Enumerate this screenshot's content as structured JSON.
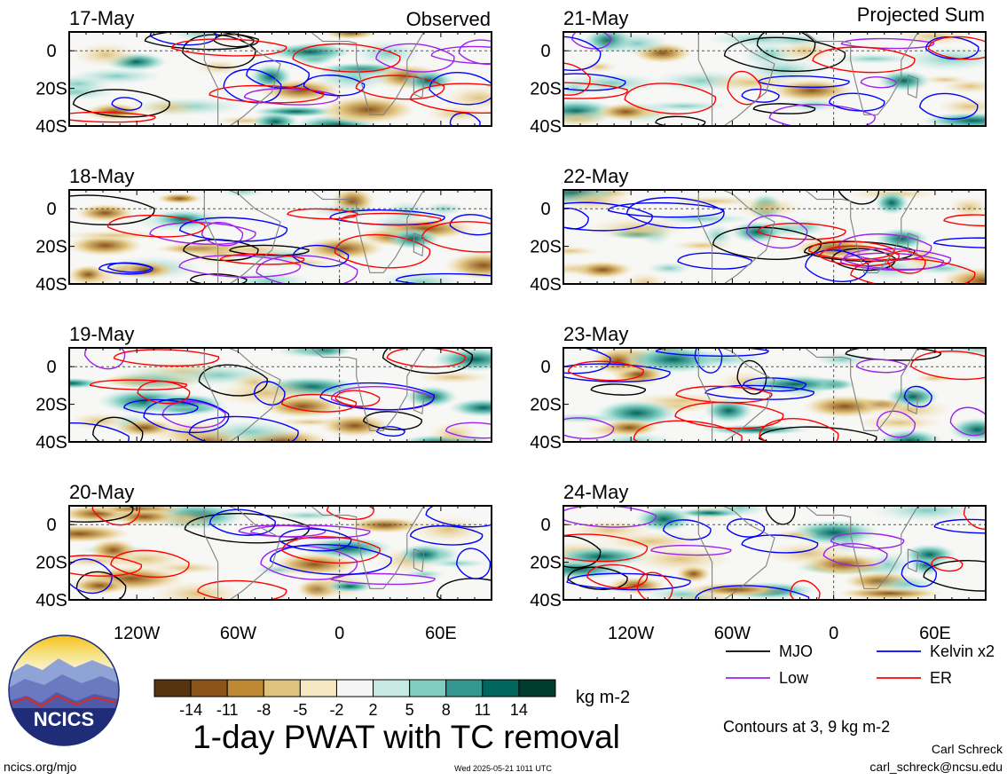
{
  "chart_data": {
    "type": "heatmap",
    "title": "1-day PWAT with TC removal",
    "column_headers": {
      "left": "Observed",
      "right": "Projected Sum"
    },
    "panels_left": [
      "17-May",
      "18-May",
      "19-May",
      "20-May"
    ],
    "panels_right": [
      "21-May",
      "22-May",
      "23-May",
      "24-May"
    ],
    "lat_ticks": [
      "0",
      "20S",
      "40S"
    ],
    "lat_range": [
      -40,
      10
    ],
    "lon_ticks": [
      "120W",
      "60W",
      "0",
      "60E"
    ],
    "lon_range": [
      -160,
      90
    ],
    "colorbar": {
      "units": "kg m-2",
      "tick_labels": [
        "-14",
        "-11",
        "-8",
        "-5",
        "-2",
        "2",
        "5",
        "8",
        "11",
        "14"
      ],
      "colors": [
        "#54330e",
        "#8b5418",
        "#bf8833",
        "#dfc27d",
        "#f6e8c3",
        "#f5f5f5",
        "#c7eae5",
        "#80cdc1",
        "#35978f",
        "#01665e",
        "#003c30"
      ]
    },
    "legend": [
      {
        "label": "MJO",
        "color": "#000000"
      },
      {
        "label": "Kelvin x2",
        "color": "#0000ff"
      },
      {
        "label": "Low",
        "color": "#a020f0"
      },
      {
        "label": "ER",
        "color": "#ff0000"
      }
    ],
    "contour_note": "Contours at 3, 9 kg m-2"
  },
  "branding": {
    "logo_text": "NCICS",
    "url": "ncics.org/mjo",
    "timestamp": "Wed 2025-05-21 1011 UTC",
    "author": "Carl Schreck",
    "email": "carl_schreck@ncsu.edu"
  }
}
